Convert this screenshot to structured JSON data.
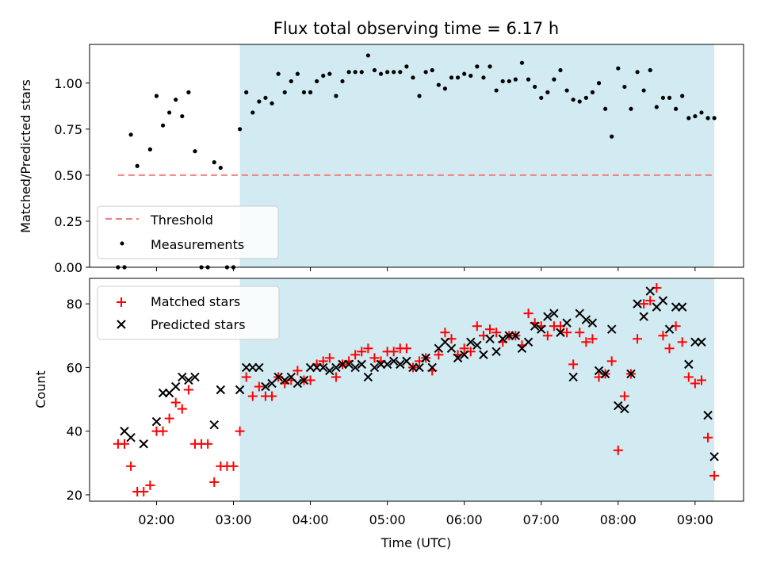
{
  "chart_data": [
    {
      "type": "scatter",
      "title": "Flux total observing time = 6.17 h",
      "xlabel": "",
      "ylabel": "Matched/Predicted stars",
      "ylim": [
        0,
        1.21
      ],
      "xlim_hours": [
        1.13,
        9.63
      ],
      "x_ticklabels_visible": false,
      "y_ticks": [
        0.0,
        0.25,
        0.5,
        0.75,
        1.0
      ],
      "y_ticklabels": [
        "0.00",
        "0.25",
        "0.50",
        "0.75",
        "1.00"
      ],
      "shaded_span": {
        "start": "03:05",
        "end": "09:15",
        "color": "#add8e6"
      },
      "legend": {
        "placement": "lower-left",
        "entries": [
          "Threshold",
          "Measurements"
        ]
      },
      "series": [
        {
          "name": "Threshold",
          "style": "dashed-line",
          "color": "#f08080",
          "x": [
            "01:30",
            "09:15"
          ],
          "y": [
            0.5,
            0.5
          ]
        },
        {
          "name": "Measurements",
          "style": "point",
          "color": "#000000",
          "x": [
            "01:30",
            "01:35",
            "01:40",
            "01:45",
            "01:55",
            "02:00",
            "02:05",
            "02:10",
            "02:15",
            "02:20",
            "02:25",
            "02:30",
            "02:35",
            "02:40",
            "02:45",
            "02:50",
            "02:55",
            "03:00",
            "03:05",
            "03:10",
            "03:15",
            "03:20",
            "03:25",
            "03:30",
            "03:35",
            "03:40",
            "03:45",
            "03:50",
            "03:55",
            "04:00",
            "04:05",
            "04:10",
            "04:15",
            "04:20",
            "04:25",
            "04:30",
            "04:35",
            "04:40",
            "04:45",
            "04:50",
            "04:55",
            "05:00",
            "05:05",
            "05:10",
            "05:15",
            "05:20",
            "05:25",
            "05:30",
            "05:35",
            "05:40",
            "05:45",
            "05:50",
            "05:55",
            "06:00",
            "06:05",
            "06:10",
            "06:15",
            "06:20",
            "06:25",
            "06:30",
            "06:35",
            "06:40",
            "06:45",
            "06:50",
            "06:55",
            "07:00",
            "07:05",
            "07:10",
            "07:15",
            "07:20",
            "07:25",
            "07:30",
            "07:35",
            "07:40",
            "07:45",
            "07:50",
            "07:55",
            "08:00",
            "08:05",
            "08:10",
            "08:15",
            "08:20",
            "08:25",
            "08:30",
            "08:35",
            "08:40",
            "08:45",
            "08:50",
            "08:55",
            "09:00",
            "09:05",
            "09:10",
            "09:15"
          ],
          "y": [
            0.0,
            0.0,
            0.72,
            0.55,
            0.64,
            0.93,
            0.77,
            0.84,
            0.91,
            0.82,
            0.95,
            0.63,
            0.0,
            0.0,
            0.57,
            0.54,
            0.0,
            0.0,
            0.75,
            0.95,
            0.84,
            0.9,
            0.92,
            0.89,
            1.05,
            0.95,
            1.01,
            1.05,
            0.95,
            0.95,
            1.01,
            1.04,
            1.05,
            0.93,
            1.01,
            1.06,
            1.06,
            1.06,
            1.15,
            1.07,
            1.05,
            1.06,
            1.06,
            1.06,
            1.09,
            1.03,
            0.93,
            1.06,
            1.07,
            0.99,
            0.97,
            1.03,
            1.03,
            1.05,
            1.04,
            1.09,
            1.03,
            1.09,
            0.96,
            1.01,
            1.01,
            1.02,
            1.11,
            1.02,
            0.98,
            0.92,
            0.95,
            1.02,
            1.07,
            0.96,
            0.91,
            0.9,
            0.92,
            0.95,
            1.0,
            0.86,
            0.71,
            1.08,
            0.98,
            0.86,
            1.06,
            0.96,
            1.07,
            0.87,
            0.92,
            0.92,
            0.86,
            0.93,
            0.81,
            0.82,
            0.84,
            0.81,
            0.81
          ]
        }
      ]
    },
    {
      "type": "scatter",
      "title": "",
      "xlabel": "Time (UTC)",
      "ylabel": "Count",
      "ylim": [
        18,
        88
      ],
      "xlim_hours": [
        1.13,
        9.63
      ],
      "x_ticks": [
        "02:00",
        "03:00",
        "04:00",
        "05:00",
        "06:00",
        "07:00",
        "08:00",
        "09:00"
      ],
      "y_ticks": [
        20,
        40,
        60,
        80
      ],
      "shaded_span": {
        "start": "03:05",
        "end": "09:15",
        "color": "#add8e6"
      },
      "legend": {
        "placement": "top-left",
        "entries": [
          "Matched stars",
          "Predicted stars"
        ]
      },
      "series": [
        {
          "name": "Matched stars",
          "marker": "+",
          "color": "#ff0000",
          "x": [
            "01:30",
            "01:35",
            "01:40",
            "01:45",
            "01:50",
            "01:55",
            "02:00",
            "02:05",
            "02:10",
            "02:15",
            "02:20",
            "02:25",
            "02:30",
            "02:35",
            "02:40",
            "02:45",
            "02:50",
            "02:55",
            "03:00",
            "03:05",
            "03:10",
            "03:15",
            "03:20",
            "03:25",
            "03:30",
            "03:35",
            "03:40",
            "03:45",
            "03:50",
            "03:55",
            "04:00",
            "04:05",
            "04:10",
            "04:15",
            "04:20",
            "04:25",
            "04:30",
            "04:35",
            "04:40",
            "04:45",
            "04:50",
            "04:55",
            "05:00",
            "05:05",
            "05:10",
            "05:15",
            "05:20",
            "05:25",
            "05:30",
            "05:35",
            "05:40",
            "05:45",
            "05:50",
            "05:55",
            "06:00",
            "06:05",
            "06:10",
            "06:15",
            "06:20",
            "06:25",
            "06:30",
            "06:35",
            "06:40",
            "06:45",
            "06:50",
            "06:55",
            "07:00",
            "07:05",
            "07:10",
            "07:15",
            "07:20",
            "07:25",
            "07:30",
            "07:35",
            "07:40",
            "07:45",
            "07:50",
            "07:55",
            "08:00",
            "08:05",
            "08:10",
            "08:15",
            "08:20",
            "08:25",
            "08:30",
            "08:35",
            "08:40",
            "08:45",
            "08:50",
            "08:55",
            "09:00",
            "09:05",
            "09:10",
            "09:15"
          ],
          "y": [
            36,
            36,
            29,
            21,
            21,
            23,
            40,
            40,
            44,
            49,
            47,
            53,
            36,
            36,
            36,
            24,
            29,
            29,
            29,
            40,
            57,
            51,
            54,
            51,
            51,
            57,
            55,
            56,
            59,
            56,
            56,
            61,
            62,
            63,
            57,
            61,
            62,
            64,
            65,
            66,
            63,
            62,
            65,
            65,
            66,
            66,
            60,
            62,
            63,
            59,
            64,
            71,
            69,
            64,
            66,
            65,
            73,
            70,
            72,
            71,
            68,
            70,
            70,
            67,
            77,
            74,
            73,
            70,
            73,
            73,
            71,
            61,
            71,
            68,
            69,
            57,
            58,
            62,
            34,
            51,
            58,
            69,
            80,
            81,
            85,
            70,
            66,
            73,
            68,
            57,
            55,
            56,
            38,
            26
          ]
        },
        {
          "name": "Predicted stars",
          "marker": "x",
          "color": "#000000",
          "x": [
            "01:35",
            "01:40",
            "01:50",
            "02:00",
            "02:05",
            "02:10",
            "02:15",
            "02:20",
            "02:25",
            "02:30",
            "02:45",
            "02:50",
            "03:05",
            "03:10",
            "03:15",
            "03:20",
            "03:25",
            "03:30",
            "03:35",
            "03:40",
            "03:45",
            "03:50",
            "03:55",
            "04:00",
            "04:05",
            "04:10",
            "04:15",
            "04:20",
            "04:25",
            "04:30",
            "04:35",
            "04:40",
            "04:45",
            "04:50",
            "04:55",
            "05:00",
            "05:05",
            "05:10",
            "05:15",
            "05:20",
            "05:25",
            "05:30",
            "05:35",
            "05:40",
            "05:45",
            "05:50",
            "05:55",
            "06:00",
            "06:05",
            "06:10",
            "06:15",
            "06:20",
            "06:25",
            "06:30",
            "06:35",
            "06:40",
            "06:45",
            "06:50",
            "06:55",
            "07:00",
            "07:05",
            "07:10",
            "07:15",
            "07:20",
            "07:25",
            "07:30",
            "07:35",
            "07:40",
            "07:45",
            "07:50",
            "07:55",
            "08:00",
            "08:05",
            "08:10",
            "08:15",
            "08:20",
            "08:25",
            "08:30",
            "08:35",
            "08:40",
            "08:45",
            "08:50",
            "08:55",
            "09:00",
            "09:05",
            "09:10",
            "09:15"
          ],
          "y": [
            40,
            38,
            36,
            43,
            52,
            52,
            54,
            57,
            56,
            57,
            42,
            53,
            53,
            60,
            60,
            60,
            54,
            55,
            57,
            56,
            57,
            55,
            56,
            60,
            60,
            60,
            59,
            60,
            61,
            61,
            60,
            61,
            57,
            60,
            61,
            61,
            62,
            61,
            62,
            60,
            60,
            63,
            60,
            66,
            68,
            66,
            63,
            64,
            68,
            67,
            64,
            69,
            65,
            69,
            70,
            70,
            66,
            68,
            73,
            72,
            76,
            77,
            71,
            74,
            57,
            77,
            75,
            74,
            59,
            58,
            72,
            48,
            47,
            58,
            80,
            76,
            84,
            79,
            81,
            72,
            79,
            79,
            61,
            68,
            68,
            45,
            32
          ]
        }
      ]
    }
  ]
}
